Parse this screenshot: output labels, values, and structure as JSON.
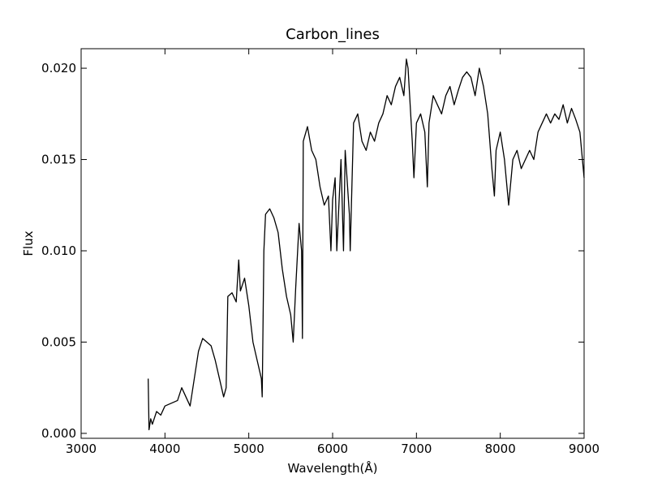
{
  "chart_data": {
    "type": "line",
    "title": "Carbon_lines",
    "x_label": "Wavelength(Å)",
    "y_label": "Flux",
    "xlim": [
      3000,
      9000
    ],
    "xticks": [
      3000,
      4000,
      5000,
      6000,
      7000,
      8000,
      9000
    ],
    "ylim": [
      -0.00027,
      0.02107
    ],
    "yticks": [
      {
        "value": 0,
        "label": "0.000"
      },
      {
        "value": 0.005,
        "label": "0.005"
      },
      {
        "value": 0.01,
        "label": "0.010"
      },
      {
        "value": 0.015,
        "label": "0.015"
      },
      {
        "value": 0.02,
        "label": "0.020"
      }
    ],
    "grid": false,
    "series": [
      {
        "color": "#000000",
        "x": [
          3800,
          3810,
          3830,
          3850,
          3900,
          3950,
          4000,
          4050,
          4100,
          4150,
          4200,
          4250,
          4300,
          4350,
          4400,
          4450,
          4500,
          4550,
          4600,
          4650,
          4700,
          4730,
          4750,
          4800,
          4850,
          4880,
          4900,
          4950,
          5000,
          5050,
          5100,
          5150,
          5160,
          5180,
          5200,
          5250,
          5300,
          5350,
          5400,
          5450,
          5500,
          5530,
          5560,
          5600,
          5630,
          5640,
          5650,
          5700,
          5750,
          5800,
          5850,
          5900,
          5950,
          5980,
          6000,
          6030,
          6050,
          6100,
          6130,
          6150,
          6200,
          6210,
          6250,
          6300,
          6350,
          6400,
          6450,
          6500,
          6550,
          6600,
          6650,
          6700,
          6750,
          6800,
          6850,
          6880,
          6900,
          6950,
          6970,
          7000,
          7050,
          7100,
          7130,
          7150,
          7200,
          7250,
          7300,
          7350,
          7400,
          7450,
          7500,
          7550,
          7600,
          7650,
          7700,
          7750,
          7800,
          7850,
          7900,
          7930,
          7950,
          8000,
          8050,
          8100,
          8150,
          8200,
          8250,
          8300,
          8350,
          8400,
          8450,
          8500,
          8550,
          8600,
          8650,
          8700,
          8750,
          8800,
          8850,
          8900,
          8950,
          9000
        ],
        "values": [
          0.003,
          0.0002,
          0.0008,
          0.0005,
          0.0012,
          0.001,
          0.0015,
          0.0016,
          0.0017,
          0.0018,
          0.0025,
          0.002,
          0.0015,
          0.003,
          0.0045,
          0.0052,
          0.005,
          0.0048,
          0.004,
          0.003,
          0.002,
          0.0025,
          0.0075,
          0.0077,
          0.0072,
          0.0095,
          0.0078,
          0.0085,
          0.007,
          0.005,
          0.004,
          0.003,
          0.002,
          0.01,
          0.012,
          0.0123,
          0.0118,
          0.011,
          0.009,
          0.0075,
          0.0065,
          0.005,
          0.008,
          0.0115,
          0.01,
          0.0052,
          0.016,
          0.0168,
          0.0155,
          0.015,
          0.0135,
          0.0125,
          0.013,
          0.01,
          0.0128,
          0.014,
          0.01,
          0.015,
          0.01,
          0.0155,
          0.012,
          0.01,
          0.017,
          0.0175,
          0.016,
          0.0155,
          0.0165,
          0.016,
          0.017,
          0.0175,
          0.0185,
          0.018,
          0.019,
          0.0195,
          0.0185,
          0.0205,
          0.02,
          0.016,
          0.014,
          0.017,
          0.0175,
          0.0165,
          0.0135,
          0.017,
          0.0185,
          0.018,
          0.0175,
          0.0185,
          0.019,
          0.018,
          0.0188,
          0.0195,
          0.0198,
          0.0195,
          0.0185,
          0.02,
          0.019,
          0.0175,
          0.0145,
          0.013,
          0.0155,
          0.0165,
          0.015,
          0.0125,
          0.015,
          0.0155,
          0.0145,
          0.015,
          0.0155,
          0.015,
          0.0165,
          0.017,
          0.0175,
          0.017,
          0.0175,
          0.0172,
          0.018,
          0.017,
          0.0178,
          0.0172,
          0.0165,
          0.014
        ]
      }
    ]
  }
}
